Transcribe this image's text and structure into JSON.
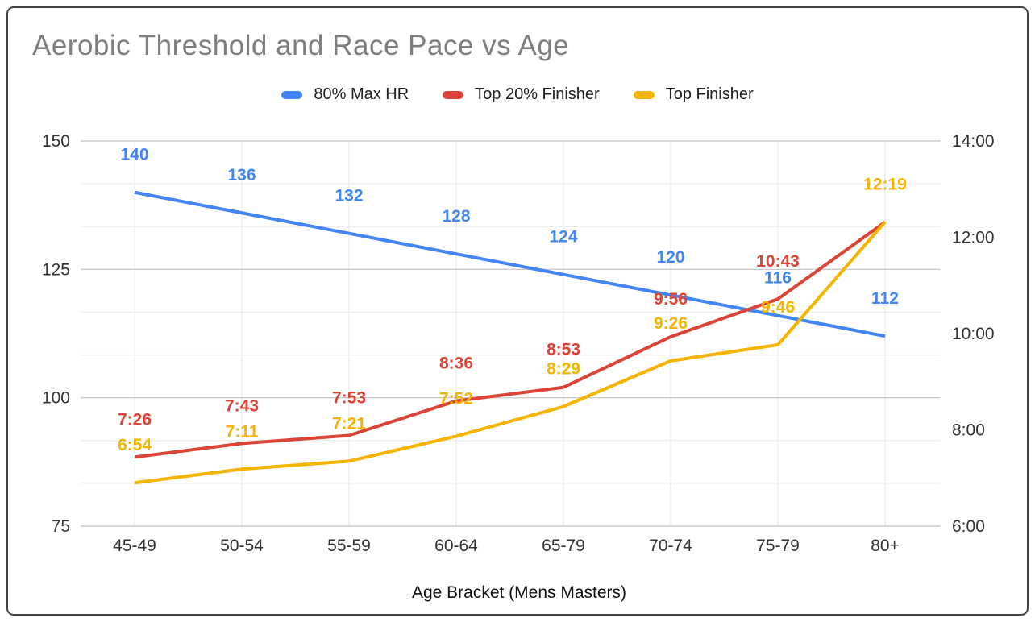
{
  "chart_data": {
    "type": "line",
    "title": "Aerobic Threshold and Race Pace vs Age",
    "xlabel": "Age Bracket (Mens Masters)",
    "legend_position": "top",
    "grid": {
      "horizontal_major": true,
      "horizontal_minor_per_interval": 2,
      "vertical_at_categories": true
    },
    "categories": [
      "45-49",
      "50-54",
      "55-59",
      "60-64",
      "65-79",
      "70-74",
      "75-79",
      "80+"
    ],
    "left_axis": {
      "title": "",
      "ticks": [
        "150",
        "125",
        "100",
        "75"
      ],
      "min": 75,
      "max": 150
    },
    "right_axis": {
      "title": "",
      "ticks": [
        "14:00",
        "12:00",
        "10:00",
        "8:00",
        "6:00"
      ],
      "min": "6:00",
      "max": "14:00"
    },
    "series": [
      {
        "name": "80% Max HR",
        "axis": "left",
        "color": "#4285F4",
        "values": [
          140,
          136,
          132,
          128,
          124,
          120,
          116,
          112
        ],
        "labels": [
          "140",
          "136",
          "132",
          "128",
          "124",
          "120",
          "116",
          "112"
        ]
      },
      {
        "name": "Top 20% Finisher",
        "axis": "right",
        "color": "#DB4437",
        "values": [
          "7:26",
          "7:43",
          "7:53",
          "8:36",
          "8:53",
          "9:56",
          "10:43",
          "12:19"
        ],
        "labels": [
          "7:26",
          "7:43",
          "7:53",
          "8:36",
          "8:53",
          "9:56",
          "10:43",
          ""
        ]
      },
      {
        "name": "Top Finisher",
        "axis": "right",
        "color": "#F4B400",
        "values": [
          "6:54",
          "7:11",
          "7:21",
          "7:52",
          "8:29",
          "9:26",
          "9:46",
          "12:19"
        ],
        "labels": [
          "6:54",
          "7:11",
          "7:21",
          "7:52",
          "8:29",
          "9:26",
          "9:46",
          "12:19"
        ]
      }
    ],
    "colors": {
      "grid_major": "#cccccc",
      "grid_minor": "#ececec",
      "title_text": "#7e7e7e",
      "axis_text": "#333333"
    }
  }
}
